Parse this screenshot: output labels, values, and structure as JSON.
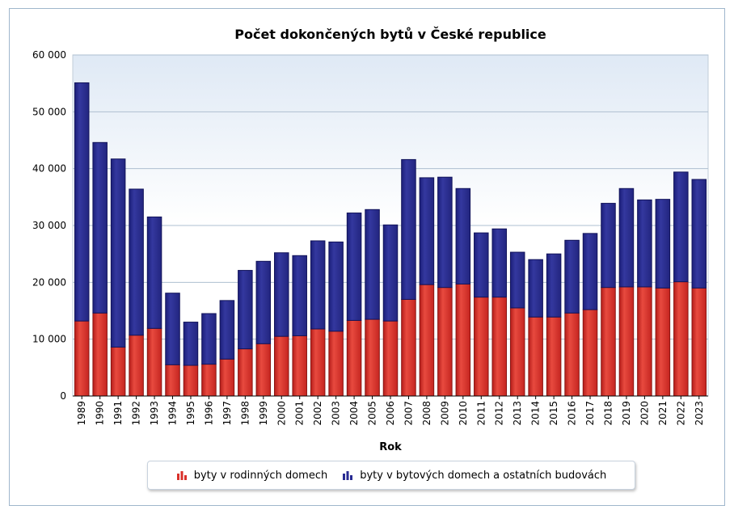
{
  "chart_data": {
    "type": "bar",
    "stacked": true,
    "title": "Počet dokončených bytů v České republice",
    "xlabel": "Rok",
    "ylabel": "",
    "ylim": [
      0,
      60000
    ],
    "yticks": [
      "0",
      "10 000",
      "20 000",
      "30 000",
      "40 000",
      "50 000",
      "60 000"
    ],
    "grid": true,
    "legend_position": "bottom",
    "categories": [
      "1989",
      "1990",
      "1991",
      "1992",
      "1993",
      "1994",
      "1995",
      "1996",
      "1997",
      "1998",
      "1999",
      "2000",
      "2001",
      "2002",
      "2003",
      "2004",
      "2005",
      "2006",
      "2007",
      "2008",
      "2009",
      "2010",
      "2011",
      "2012",
      "2013",
      "2014",
      "2015",
      "2016",
      "2017",
      "2018",
      "2019",
      "2020",
      "2021",
      "2022",
      "2023"
    ],
    "series": [
      {
        "name": "byty v rodinných domech",
        "color": "#d9302a",
        "values": [
          13200,
          14600,
          8600,
          10700,
          11900,
          5500,
          5400,
          5600,
          6500,
          8300,
          9200,
          10500,
          10600,
          11800,
          11400,
          13300,
          13500,
          13200,
          17000,
          19600,
          19100,
          19700,
          17400,
          17400,
          15500,
          13900,
          13900,
          14600,
          15200,
          19100,
          19200,
          19200,
          19000,
          20100,
          19000
        ]
      },
      {
        "name": "byty v bytových domech a ostatních budovách",
        "color": "#272a92",
        "values": [
          41900,
          30000,
          33100,
          25700,
          19600,
          12600,
          7600,
          8900,
          10300,
          13800,
          14500,
          14700,
          14100,
          15500,
          15700,
          18900,
          19300,
          16900,
          24600,
          18800,
          19400,
          16800,
          11300,
          12000,
          9800,
          10100,
          11100,
          12800,
          13400,
          14800,
          17300,
          15300,
          15600,
          19300,
          19100
        ]
      }
    ]
  }
}
